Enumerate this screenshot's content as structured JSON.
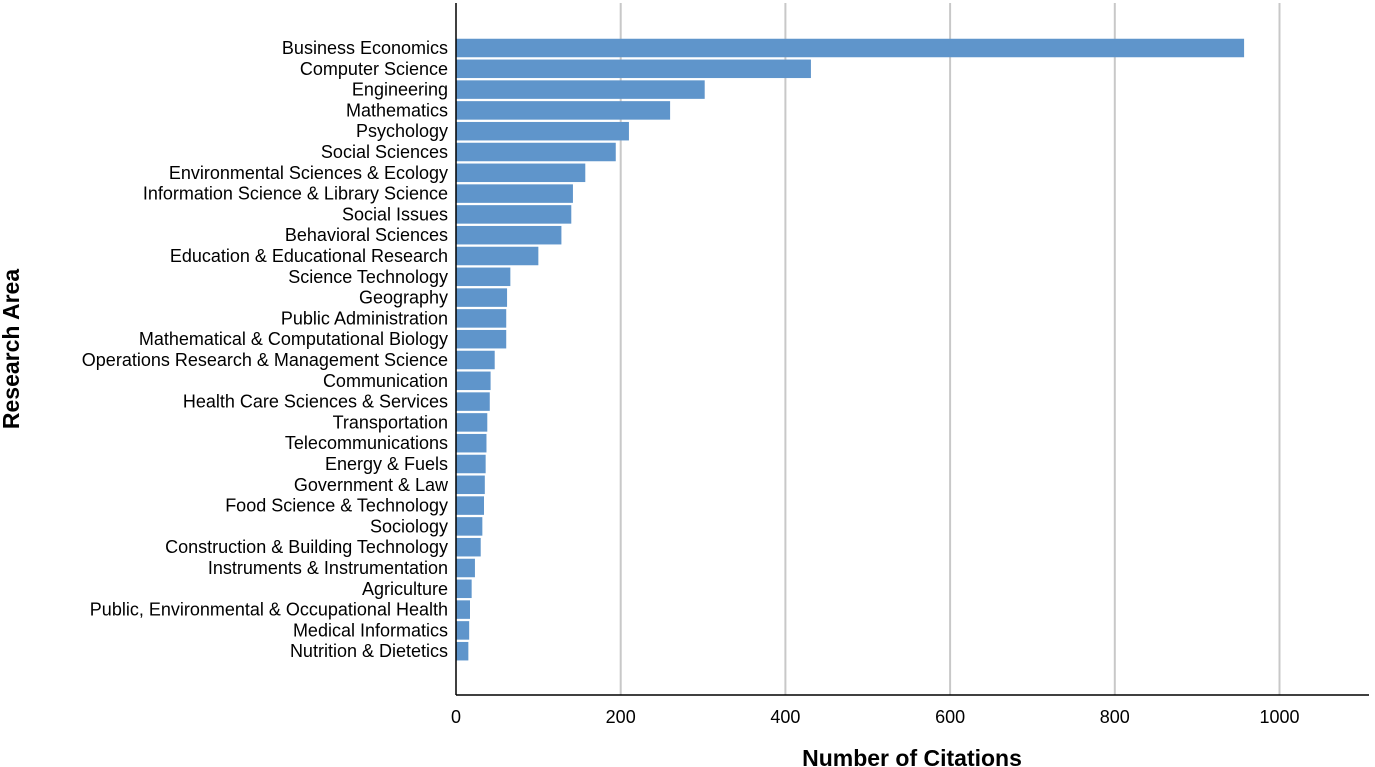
{
  "chart_data": {
    "type": "bar",
    "orientation": "horizontal",
    "xlabel": "Number of Citations",
    "ylabel": "Research Area",
    "xlim": [
      0,
      1110
    ],
    "xticks": [
      0,
      200,
      400,
      600,
      800,
      1000
    ],
    "grid": "vertical",
    "bar_color": "#5f95cb",
    "categories": [
      "Business Economics",
      "Computer Science",
      "Engineering",
      "Mathematics",
      "Psychology",
      "Social Sciences",
      "Environmental Sciences & Ecology",
      "Information Science & Library Science",
      "Social Issues",
      "Behavioral Sciences",
      "Education & Educational Research",
      "Science Technology",
      "Geography",
      "Public Administration",
      "Mathematical & Computational Biology",
      "Operations Research & Management Science",
      "Communication",
      "Health Care Sciences & Services",
      "Transportation",
      "Telecommunications",
      "Energy & Fuels",
      "Government & Law",
      "Food Science & Technology",
      "Sociology",
      "Construction & Building Technology",
      "Instruments & Instrumentation",
      "Agriculture",
      "Public, Environmental & Occupational Health",
      "Medical Informatics",
      "Nutrition & Dietetics"
    ],
    "values": [
      957,
      431,
      302,
      260,
      210,
      194,
      157,
      142,
      140,
      128,
      100,
      66,
      62,
      61,
      61,
      47,
      42,
      41,
      38,
      37,
      36,
      35,
      34,
      32,
      30,
      23,
      19,
      17,
      16,
      15
    ]
  }
}
